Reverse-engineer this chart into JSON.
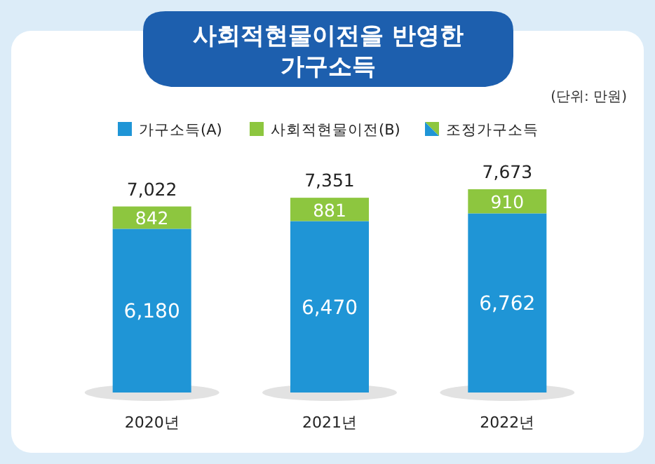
{
  "chart_data": {
    "type": "bar",
    "title": "사회적현물이전을 반영한\n가구소득",
    "subtitle": "(단위: 만원)",
    "categories": [
      "2020년",
      "2021년",
      "2022년"
    ],
    "stacked": true,
    "legend": "top",
    "series": [
      {
        "name": "가구소득(A)",
        "color": "#1f95d6",
        "values": [
          6180,
          6470,
          6762
        ],
        "value_labels": [
          "6,180",
          "6,470",
          "6,762"
        ]
      },
      {
        "name": "사회적현물이전(B)",
        "color": "#8dc63f",
        "values": [
          842,
          881,
          910
        ],
        "value_labels": [
          "842",
          "881",
          "910"
        ]
      },
      {
        "name": "조정가구소득",
        "color": "#8dc63f",
        "values": [
          null,
          null,
          null
        ]
      }
    ],
    "totals": [
      "7,022",
      "7,351",
      "7,673"
    ]
  }
}
